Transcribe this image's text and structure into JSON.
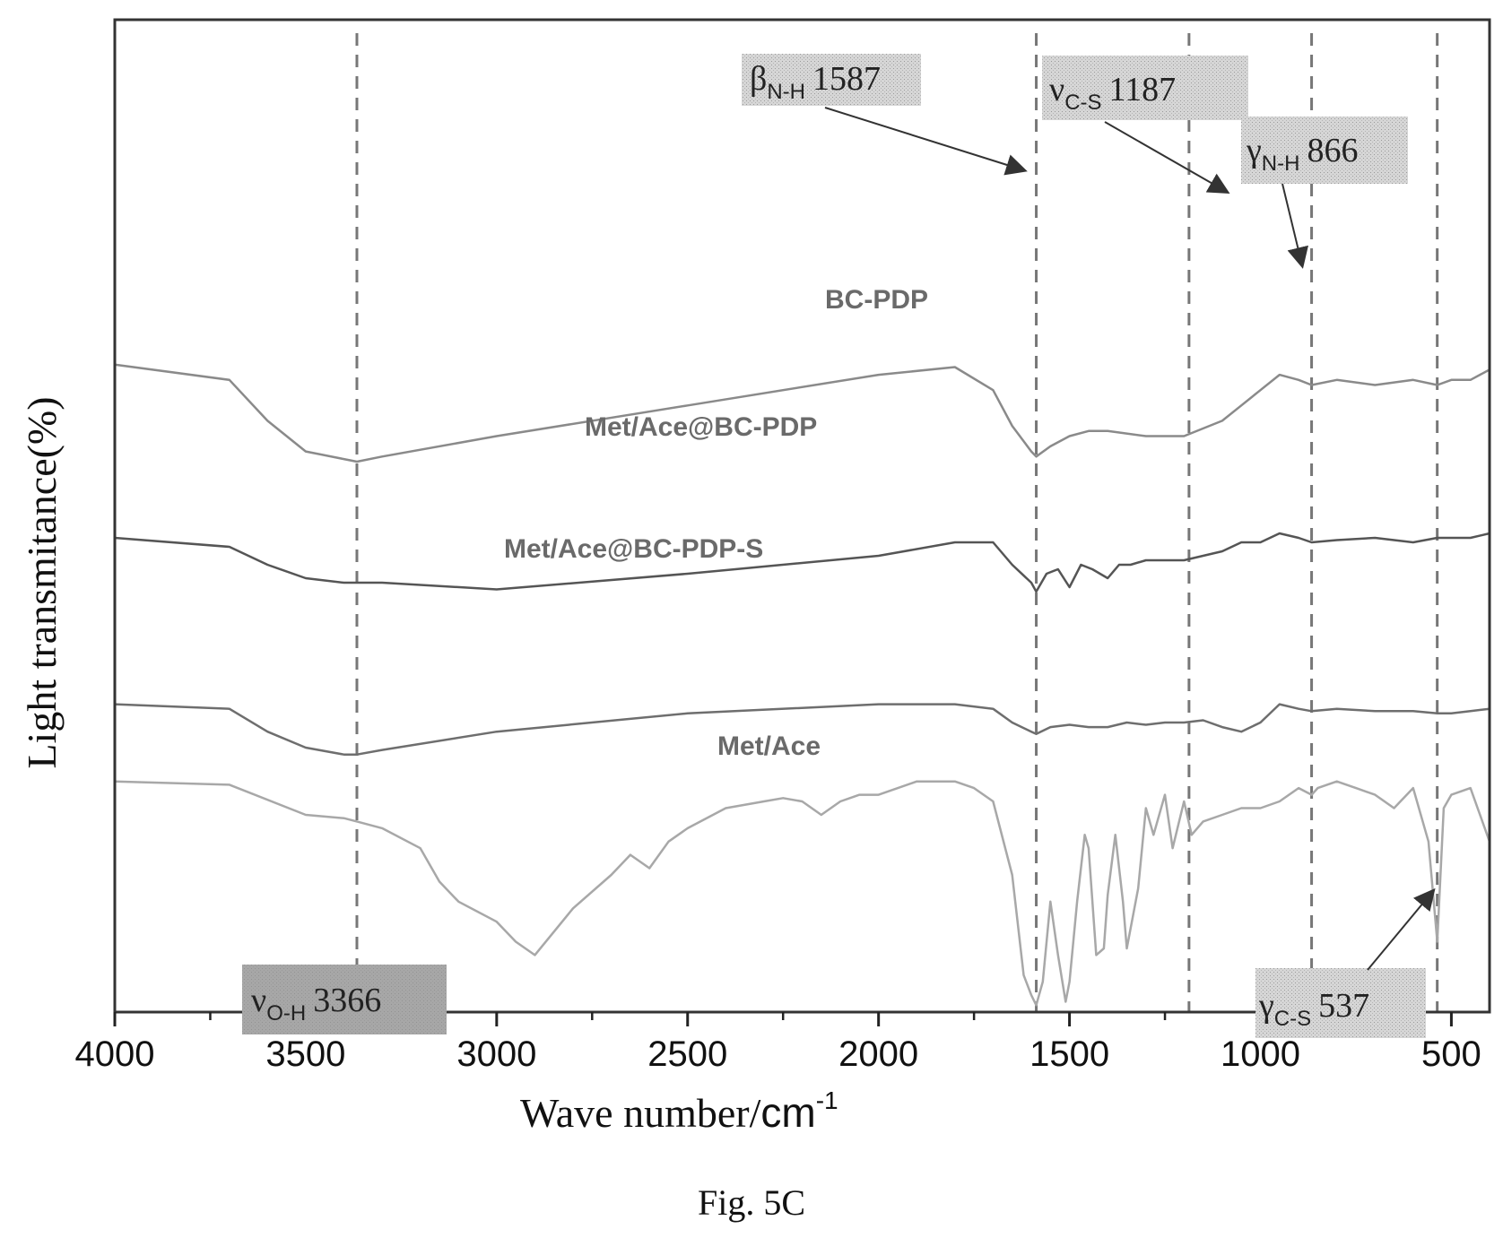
{
  "figure_caption": "Fig. 5C",
  "chart_data": {
    "type": "line",
    "xlabel_main": "Wave number/",
    "xlabel_unit": "cm",
    "xlabel_unit_exp": "-1",
    "ylabel": "Light transmitance(%)",
    "xlim": [
      4000,
      400
    ],
    "x_reversed": true,
    "xticks": [
      4000,
      3500,
      3000,
      2500,
      2000,
      1500,
      1000,
      500
    ],
    "xtick_labels": [
      "4000",
      "3500",
      "3000",
      "2500",
      "2000",
      "1500",
      "1000",
      "500"
    ],
    "ylim": [
      0,
      100
    ],
    "grid": false,
    "legend": "none",
    "series": [
      {
        "name": "BC-PDP",
        "color": "#8a8a8a",
        "x": [
          4000,
          3700,
          3600,
          3500,
          3400,
          3366,
          3300,
          3000,
          2500,
          2000,
          1800,
          1700,
          1650,
          1600,
          1587,
          1550,
          1500,
          1450,
          1400,
          1300,
          1200,
          1100,
          1050,
          1000,
          950,
          900,
          866,
          800,
          700,
          600,
          537,
          500,
          450,
          400
        ],
        "y": [
          69,
          66,
          58,
          52,
          50.5,
          50,
          51,
          55,
          61,
          67,
          68.5,
          64,
          57,
          52,
          51,
          53,
          55,
          56,
          56,
          55,
          55,
          58,
          61,
          64,
          67,
          66,
          65,
          66,
          65,
          66,
          65,
          66,
          66,
          68
        ]
      },
      {
        "name": "Met/Ace@BC-PDP",
        "color": "#555555",
        "x": [
          4000,
          3700,
          3600,
          3500,
          3400,
          3366,
          3300,
          3000,
          2500,
          2000,
          1800,
          1700,
          1650,
          1600,
          1587,
          1560,
          1530,
          1500,
          1470,
          1440,
          1400,
          1370,
          1340,
          1300,
          1250,
          1200,
          1150,
          1100,
          1050,
          1000,
          950,
          900,
          866,
          800,
          700,
          600,
          537,
          500,
          450,
          400
        ],
        "y": [
          56,
          54,
          50,
          47,
          46,
          46,
          46,
          44.5,
          48,
          52,
          55,
          55,
          50,
          46,
          44,
          48,
          49,
          45,
          50,
          49,
          47,
          50,
          50,
          51,
          51,
          51,
          52,
          53,
          55,
          55,
          57,
          56,
          55,
          55.5,
          56,
          55,
          56,
          56,
          56,
          57
        ]
      },
      {
        "name": "Met/Ace@BC-PDP-S",
        "color": "#6e6e6e",
        "x": [
          4000,
          3700,
          3600,
          3500,
          3400,
          3366,
          3300,
          3000,
          2500,
          2000,
          1800,
          1700,
          1650,
          1600,
          1587,
          1550,
          1500,
          1450,
          1400,
          1350,
          1300,
          1250,
          1200,
          1150,
          1100,
          1050,
          1000,
          950,
          900,
          866,
          800,
          700,
          600,
          537,
          500,
          450,
          400
        ],
        "y": [
          44,
          43,
          38,
          34.5,
          33,
          33,
          34,
          38,
          42,
          44,
          44,
          43,
          40,
          38,
          37.5,
          39,
          39.5,
          39,
          39,
          40,
          39.5,
          40,
          40,
          40.5,
          39,
          38,
          40,
          44,
          43,
          42.5,
          43,
          42.5,
          42.5,
          42,
          42,
          42.5,
          43
        ]
      },
      {
        "name": "Met/Ace",
        "color": "#a8a8a8",
        "x": [
          4000,
          3700,
          3500,
          3400,
          3366,
          3300,
          3200,
          3150,
          3100,
          3000,
          2950,
          2900,
          2800,
          2700,
          2650,
          2600,
          2550,
          2500,
          2400,
          2300,
          2250,
          2200,
          2150,
          2100,
          2050,
          2000,
          1900,
          1800,
          1750,
          1700,
          1650,
          1620,
          1600,
          1587,
          1570,
          1550,
          1530,
          1510,
          1500,
          1480,
          1460,
          1450,
          1430,
          1410,
          1400,
          1380,
          1360,
          1350,
          1320,
          1300,
          1280,
          1250,
          1230,
          1200,
          1180,
          1150,
          1100,
          1050,
          1000,
          950,
          900,
          866,
          850,
          800,
          750,
          700,
          650,
          600,
          560,
          537,
          520,
          500,
          450,
          400
        ],
        "y": [
          34,
          33.5,
          29,
          28.5,
          28,
          27,
          24,
          19,
          16,
          13,
          10,
          8,
          15,
          20,
          23,
          21,
          25,
          27,
          30,
          31,
          31.5,
          31,
          29,
          31,
          32,
          32,
          34,
          34,
          33,
          31,
          20,
          5,
          2,
          0.5,
          4,
          16,
          8,
          1,
          4,
          16,
          26,
          24,
          8,
          9,
          17,
          26,
          16,
          9,
          18,
          30,
          26,
          32,
          24,
          31,
          26,
          28,
          29,
          30,
          30,
          31,
          33,
          32,
          33,
          34,
          33,
          32,
          30,
          33,
          25,
          10,
          30,
          32,
          33,
          25
        ]
      }
    ],
    "series_labels": [
      "BC-PDP",
      "Met/Ace@BC-PDP",
      "Met/Ace@BC-PDP-S",
      "Met/Ace"
    ],
    "reference_lines": [
      3366,
      1587,
      1187,
      866,
      537
    ],
    "annotations": [
      {
        "symbol": "ν",
        "sub": "O-H",
        "value": "3366",
        "x": 3366
      },
      {
        "symbol": "β",
        "sub": "N-H",
        "value": "1587",
        "x": 1587
      },
      {
        "symbol": "ν",
        "sub": "C-S",
        "value": "1187",
        "x": 1187
      },
      {
        "symbol": "γ",
        "sub": "N-H",
        "value": "866",
        "x": 866
      },
      {
        "symbol": "γ",
        "sub": "C-S",
        "value": "537",
        "x": 537
      }
    ]
  }
}
